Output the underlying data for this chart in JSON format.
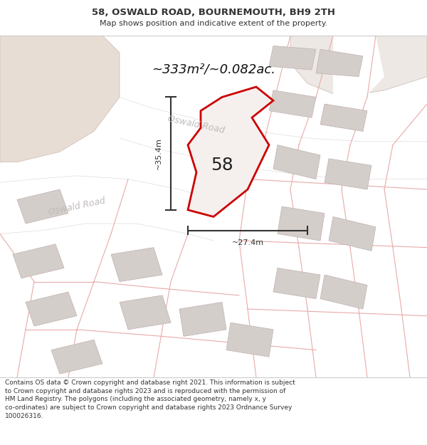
{
  "title": "58, OSWALD ROAD, BOURNEMOUTH, BH9 2TH",
  "subtitle": "Map shows position and indicative extent of the property.",
  "area_text": "~333m²/~0.082ac.",
  "label_58": "58",
  "dim_vertical": "~35.4m",
  "dim_horizontal": "~27.4m",
  "road_label_bottom": "Oswald Road",
  "road_label_top": "Oswald Road",
  "footer": "Contains OS data © Crown copyright and database right 2021. This information is subject to Crown copyright and database rights 2023 and is reproduced with the permission of HM Land Registry. The polygons (including the associated geometry, namely x, y co-ordinates) are subject to Crown copyright and database rights 2023 Ordnance Survey 100026316.",
  "map_bg": "#f7f3f1",
  "white": "#ffffff",
  "road_fill": "#ffffff",
  "large_plot_fill": "#ede5e0",
  "plot_bg": "#f7f3f1",
  "prop_fill": "#f7f3f1",
  "prop_edge": "#cc0000",
  "building_fill": "#d4ceca",
  "building_edge": "#c0b0b0",
  "bg_line_color": "#e8aaaa",
  "dim_color": "#333333",
  "title_color": "#333333",
  "road_label_color": "#c0baba",
  "footer_color": "#333333",
  "header_bg": "#ffffff",
  "footer_bg": "#ffffff"
}
